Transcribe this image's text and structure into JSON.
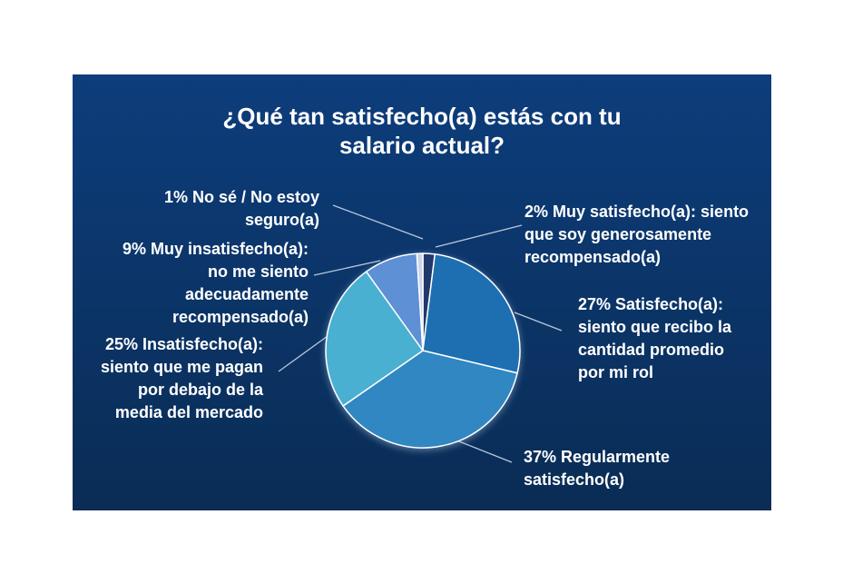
{
  "slide": {
    "title": "¿Qué tan satisfecho(a) estás con tu\nsalario actual?",
    "background_top_color": "#0d3d7c",
    "background_bottom_color": "#0a2c55",
    "text_color": "#ffffff"
  },
  "chart_data": {
    "type": "pie",
    "title": "¿Qué tan satisfecho(a) estás con tu salario actual?",
    "unit": "percent",
    "direction": "clockwise",
    "start_angle_deg": 0,
    "legend_position": "callout-labels",
    "slice_border_color": "#ffffff",
    "callout_line_color": "#b9c7dd",
    "slices": [
      {
        "id": "muy-satisfecho",
        "label": "Muy satisfecho(a): siento que soy generosamente recompensado(a)",
        "value": 2,
        "color": "#20396b"
      },
      {
        "id": "satisfecho",
        "label": "Satisfecho(a): siento que recibo la cantidad promedio por mi rol",
        "value": 27,
        "color": "#1e6fb2"
      },
      {
        "id": "regularmente-satisfecho",
        "label": "Regularmente satisfecho(a)",
        "value": 37,
        "color": "#3087c2"
      },
      {
        "id": "insatisfecho",
        "label": "Insatisfecho(a): siento que me pagan por debajo de la media del mercado",
        "value": 25,
        "color": "#49b0d2"
      },
      {
        "id": "muy-insatisfecho",
        "label": "Muy insatisfecho(a): no me siento adecuadamente recompensado(a)",
        "value": 9,
        "color": "#5e90d6"
      },
      {
        "id": "no-se",
        "label": "No sé / No estoy seguro(a)",
        "value": 1,
        "color": "#ccd4e6"
      }
    ]
  },
  "labels": {
    "no_se": "1% No sé / No estoy\nseguro(a)",
    "muy_insatisfecho": "9% Muy insatisfecho(a):\nno me siento\nadecuadamente\nrecompensado(a)",
    "insatisfecho": "25% Insatisfecho(a):\nsiento que me pagan\npor debajo de la\nmedia del mercado",
    "muy_satisfecho": "2% Muy satisfecho(a): siento\nque soy generosamente\nrecompensado(a)",
    "satisfecho": "27% Satisfecho(a):\nsiento que recibo la\ncantidad promedio\npor mi rol",
    "regularmente": "37% Regularmente\nsatisfecho(a)"
  }
}
